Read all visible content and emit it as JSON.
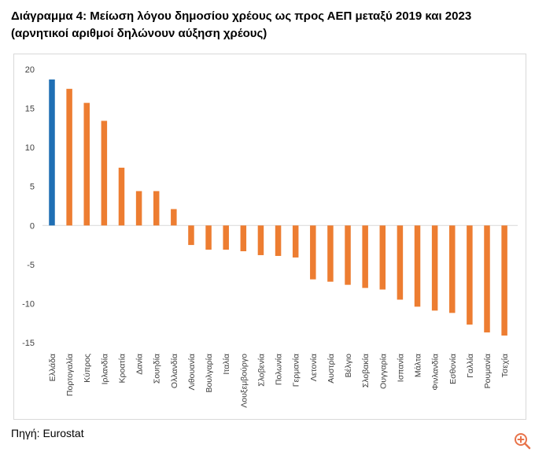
{
  "header": {
    "title_line1": "Διάγραμμα 4: Μείωση λόγου δημοσίου χρέους ως προς ΑΕΠ μεταξύ 2019 και 2023",
    "title_line2": "(αρνητικοί αριθμοί δηλώνουν αύξηση χρέους)"
  },
  "footer": {
    "source": "Πηγή: Eurostat"
  },
  "colors": {
    "highlight": "#1f6fb4",
    "bar": "#ed7d31",
    "axis_text": "#404040",
    "frame": "#d9d9d9",
    "zoom_icon": "#e8734a"
  },
  "icons": {
    "zoom": "zoom-in-icon"
  },
  "chart_data": {
    "type": "bar",
    "title": "Διάγραμμα 4: Μείωση λόγου δημοσίου χρέους ως προς ΑΕΠ μεταξύ 2019 και 2023",
    "subtitle": "(αρνητικοί αριθμοί δηλώνουν αύξηση χρέους)",
    "xlabel": "",
    "ylabel": "",
    "ylim": [
      -15,
      20
    ],
    "yticks": [
      20,
      15,
      10,
      5,
      0,
      -5,
      -10,
      -15
    ],
    "grid": false,
    "legend": "none",
    "highlight_category": "Ελλάδα",
    "categories": [
      "Ελλάδα",
      "Πορτογαλία",
      "Κύπρος",
      "Ιρλανδία",
      "Κροατία",
      "Δανία",
      "Σουηδία",
      "Ολλανδία",
      "Λιθουανία",
      "Βουλγαρία",
      "Ιταλία",
      "Λουξεμβούργο",
      "Σλοβενία",
      "Πολωνία",
      "Γερμανία",
      "Λετονία",
      "Αυστρία",
      "Βέλγιο",
      "Σλοβακία",
      "Ουγγαρία",
      "Ισπανία",
      "Μάλτα",
      "Φινλανδία",
      "Εσθονία",
      "Γαλλία",
      "Ρουμανία",
      "Τσεχία"
    ],
    "values": [
      18.7,
      17.5,
      15.7,
      13.4,
      7.4,
      4.4,
      4.4,
      2.1,
      -2.5,
      -3.1,
      -3.1,
      -3.3,
      -3.8,
      -3.9,
      -4.1,
      -6.9,
      -7.2,
      -7.6,
      -8.0,
      -8.2,
      -9.5,
      -10.4,
      -10.9,
      -11.2,
      -12.7,
      -13.7,
      -14.1
    ]
  }
}
